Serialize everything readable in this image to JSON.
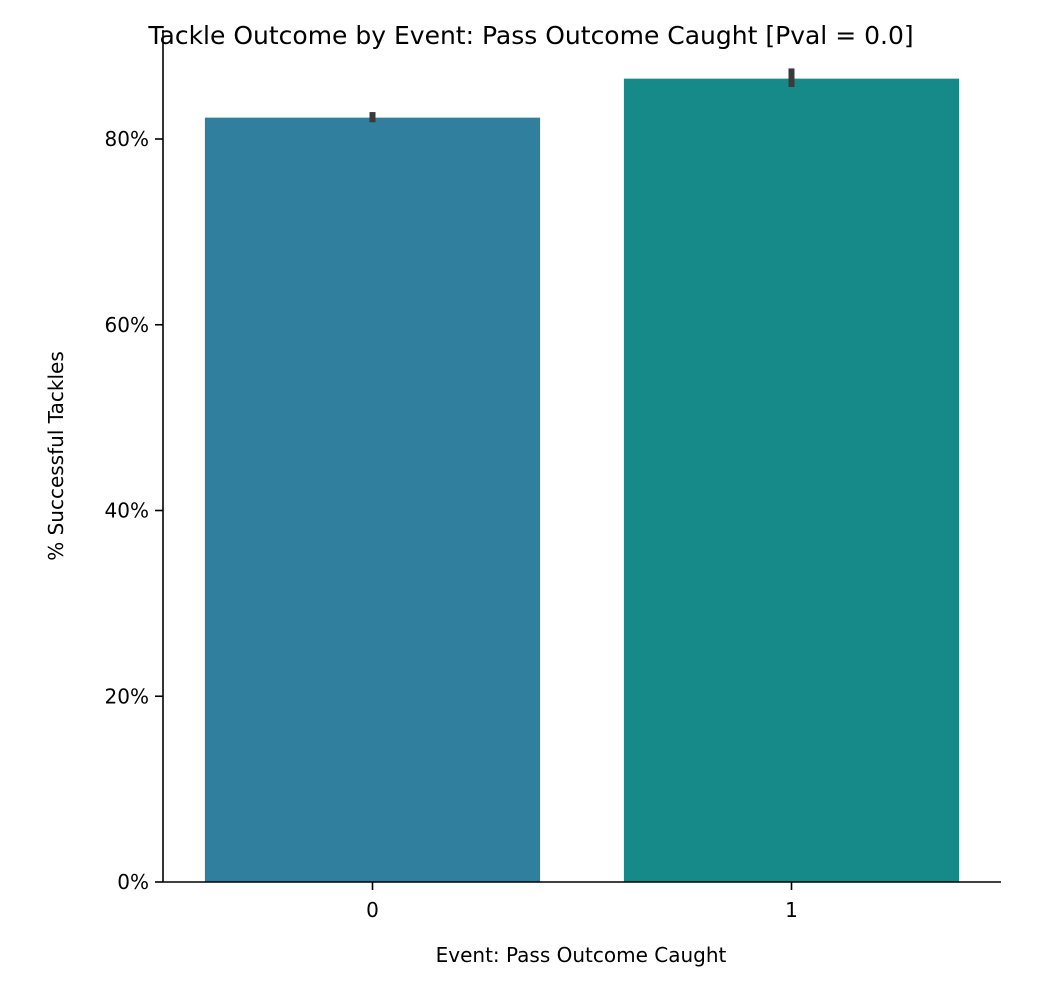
{
  "chart_data": {
    "type": "bar",
    "title": "Tackle Outcome by Event: Pass Outcome Caught [Pval = 0.0]",
    "xlabel": "Event: Pass Outcome Caught",
    "ylabel": "% Successful Tackles",
    "categories": [
      "0",
      "1"
    ],
    "values": [
      0.823,
      0.865
    ],
    "error_bars": [
      [
        0.818,
        0.829
      ],
      [
        0.856,
        0.876
      ]
    ],
    "ylim": [
      0,
      0.9
    ],
    "yticks": [
      0,
      0.2,
      0.4,
      0.6,
      0.8
    ],
    "ytick_labels": [
      "0%",
      "20%",
      "40%",
      "60%",
      "80%"
    ],
    "colors": [
      "#317f9e",
      "#168a88"
    ],
    "error_color": "#3a3a3a",
    "grid": false,
    "legend": "none"
  }
}
